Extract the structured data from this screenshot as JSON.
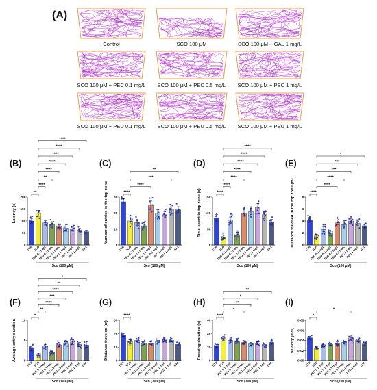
{
  "bar_colors": [
    "#2f45d8",
    "#f3ee3a",
    "#a9bce6",
    "#7ea34f",
    "#d98a6a",
    "#a6d0ea",
    "#c7a6db",
    "#b5b5b5",
    "#4d5a86"
  ],
  "dot_color": "#2a3fd4",
  "panel_a": {
    "label": "(A)",
    "track_color": "#b53ccb",
    "arena_color": "#f09a48",
    "tracks": [
      {
        "caption": "Control"
      },
      {
        "caption": "SCO 100 μM"
      },
      {
        "caption": "SCO 100 μM + GAL 1 mg/L"
      },
      {
        "caption": "SCO 100 μM + PEC 0.1 mg/L"
      },
      {
        "caption": "SCO 100 μM + PEC 0.5 mg/L"
      },
      {
        "caption": "SCO 100 μM + PEC 1 mg/L"
      },
      {
        "caption": "SCO 100 μM + PEU 0.1 mg/L"
      },
      {
        "caption": "SCO 100 μM + PEU 0.5 mg/L"
      },
      {
        "caption": "SCO 100 μM + PEU 1 mg/L"
      }
    ]
  },
  "chart_data": [
    {
      "panel": "(B)",
      "type": "bar",
      "ylabel": "Latency (s)",
      "categories": [
        "CTR",
        "SCO",
        "PEC 0.1 mg/L",
        "PEU 0.1 mg/L",
        "PEC 0.5 mg/L",
        "PEU 0.5 mg/L",
        "PEC 1 mg/L",
        "PEU 1 mg/L",
        "GAL"
      ],
      "values": [
        100,
        132,
        92,
        88,
        80,
        70,
        68,
        62,
        55
      ],
      "errors": [
        10,
        12,
        9,
        9,
        8,
        8,
        7,
        7,
        6
      ],
      "ylim": [
        0,
        200
      ],
      "yticks": [
        "0",
        "50",
        "100",
        "150",
        "200"
      ],
      "group_label": "Sco (100 μM)",
      "significance": [
        {
          "from": 0,
          "to": 1,
          "label": "**"
        },
        {
          "from": 1,
          "to": 2,
          "label": "****"
        },
        {
          "from": 1,
          "to": 3,
          "label": "**"
        },
        {
          "from": 1,
          "to": 4,
          "label": "****"
        },
        {
          "from": 1,
          "to": 5,
          "label": "****"
        },
        {
          "from": 1,
          "to": 6,
          "label": "****"
        },
        {
          "from": 1,
          "to": 7,
          "label": "****"
        },
        {
          "from": 1,
          "to": 8,
          "label": "****"
        }
      ]
    },
    {
      "panel": "(C)",
      "type": "bar",
      "ylabel": "Number of entries to the top zone",
      "categories": [
        "CTR",
        "SCO",
        "PEC 0.1 mg/L",
        "PEU 0.1 mg/L",
        "PEC 0.5 mg/L",
        "PEU 0.5 mg/L",
        "PEC 1 mg/L",
        "PEU 1 mg/L",
        "GAL"
      ],
      "values": [
        27,
        15,
        14,
        12,
        25,
        20,
        19,
        22,
        22
      ],
      "errors": [
        2,
        2,
        2,
        2,
        2.5,
        2,
        2,
        2,
        2
      ],
      "ylim": [
        0,
        30
      ],
      "yticks": [
        "0",
        "10",
        "20",
        "30"
      ],
      "group_label": "Sco (100 μM)",
      "significance": [
        {
          "from": 0,
          "to": 1,
          "label": "****"
        },
        {
          "from": 1,
          "to": 4,
          "label": "****"
        },
        {
          "from": 1,
          "to": 7,
          "label": "***"
        },
        {
          "from": 1,
          "to": 8,
          "label": "**"
        }
      ]
    },
    {
      "panel": "(D)",
      "type": "bar",
      "ylabel": "Time spent in top zone (s)",
      "categories": [
        "CTR",
        "SCO",
        "PEC 0.1 mg/L",
        "PEU 0.1 mg/L",
        "PEC 0.5 mg/L",
        "PEU 0.5 mg/L",
        "PEC 1 mg/L",
        "PEU 1 mg/L",
        "GAL"
      ],
      "values": [
        85,
        25,
        78,
        32,
        100,
        105,
        118,
        95,
        72
      ],
      "errors": [
        10,
        5,
        10,
        8,
        10,
        10,
        12,
        10,
        8
      ],
      "ylim": [
        0,
        150
      ],
      "yticks": [
        "0",
        "50",
        "100",
        "150"
      ],
      "group_label": "Sco (100 μM)",
      "significance": [
        {
          "from": 0,
          "to": 1,
          "label": "****"
        },
        {
          "from": 1,
          "to": 2,
          "label": "****"
        },
        {
          "from": 1,
          "to": 4,
          "label": "****"
        },
        {
          "from": 1,
          "to": 5,
          "label": "****"
        },
        {
          "from": 1,
          "to": 6,
          "label": "****"
        },
        {
          "from": 1,
          "to": 7,
          "label": "****"
        },
        {
          "from": 1,
          "to": 8,
          "label": "****"
        }
      ]
    },
    {
      "panel": "(E)",
      "type": "bar",
      "ylabel": "Distance traveled in the top zone (m)",
      "categories": [
        "CTR",
        "SCO",
        "PEC 0.1 mg/L",
        "PEU 0.1 mg/L",
        "PEC 0.5 mg/L",
        "PEU 0.5 mg/L",
        "PEC 1 mg/L",
        "PEU 1 mg/L",
        "GAL"
      ],
      "values": [
        4.2,
        1.5,
        2.6,
        2.0,
        3.8,
        3.4,
        4.0,
        3.6,
        3.2
      ],
      "errors": [
        0.4,
        0.3,
        0.4,
        0.3,
        0.4,
        0.4,
        0.4,
        0.4,
        0.3
      ],
      "ylim": [
        0,
        8
      ],
      "yticks": [
        "0",
        "2",
        "4",
        "6",
        "8"
      ],
      "group_label": "Sco (100 μM)",
      "significance": [
        {
          "from": 0,
          "to": 1,
          "label": "****"
        },
        {
          "from": 1,
          "to": 4,
          "label": "****"
        },
        {
          "from": 1,
          "to": 5,
          "label": "****"
        },
        {
          "from": 1,
          "to": 6,
          "label": "***"
        },
        {
          "from": 1,
          "to": 7,
          "label": "***"
        },
        {
          "from": 1,
          "to": 8,
          "label": "*"
        }
      ]
    },
    {
      "panel": "(F)",
      "type": "bar",
      "ylabel": "Average entry duration",
      "categories": [
        "CTR",
        "SCO",
        "PEC 0.1 mg/L",
        "PEU 0.1 mg/L",
        "PEC 0.5 mg/L",
        "PEU 0.5 mg/L",
        "PEC 1 mg/L",
        "PEU 1 mg/L",
        "GAL"
      ],
      "values": [
        3.0,
        1.4,
        3.6,
        2.0,
        3.9,
        4.1,
        4.6,
        4.0,
        3.8
      ],
      "errors": [
        0.6,
        0.3,
        0.4,
        0.4,
        0.5,
        0.5,
        0.6,
        0.5,
        0.5
      ],
      "ylim": [
        0,
        10
      ],
      "yticks": [
        "0",
        "5",
        "10"
      ],
      "group_label": "Sco (100 μM)",
      "significance": [
        {
          "from": 0,
          "to": 1,
          "label": "*"
        },
        {
          "from": 1,
          "to": 2,
          "label": "**"
        },
        {
          "from": 1,
          "to": 4,
          "label": "****"
        },
        {
          "from": 1,
          "to": 5,
          "label": "***"
        },
        {
          "from": 1,
          "to": 6,
          "label": "****"
        },
        {
          "from": 1,
          "to": 7,
          "label": "**"
        },
        {
          "from": 1,
          "to": 8,
          "label": "*"
        }
      ]
    },
    {
      "panel": "(G)",
      "type": "bar",
      "ylabel": "Distance traveled (m)",
      "categories": [
        "CTR",
        "SCO",
        "PEC 0.1 mg/L",
        "PEU 0.1 mg/L",
        "PEC 0.5 mg/L",
        "PEU 0.5 mg/L",
        "PEC 1 mg/L",
        "PEU 1 mg/L",
        "GAL"
      ],
      "values": [
        19,
        14,
        15,
        13,
        13,
        14,
        15,
        15,
        12
      ],
      "errors": [
        1,
        1.5,
        1,
        1,
        1,
        1,
        1,
        1,
        1
      ],
      "ylim": [
        0,
        30
      ],
      "yticks": [
        "0",
        "10",
        "20",
        "30"
      ],
      "group_label": "Sco (100 μM)",
      "significance": [
        {
          "from": 0,
          "to": 1,
          "label": "****"
        }
      ]
    },
    {
      "panel": "(H)",
      "type": "bar",
      "ylabel": "Freezing duration (s)",
      "categories": [
        "CTR",
        "SCO",
        "PEC 0.1 mg/L",
        "PEU 0.1 mg/L",
        "PEC 0.5 mg/L",
        "PEU 0.5 mg/L",
        "PEC 1 mg/L",
        "PEU 1 mg/L",
        "GAL"
      ],
      "values": [
        22,
        33,
        30,
        28,
        27,
        25,
        26,
        24,
        27
      ],
      "errors": [
        2,
        3,
        2.5,
        2.5,
        2,
        2,
        2,
        2,
        2.5
      ],
      "ylim": [
        0,
        60
      ],
      "yticks": [
        "0",
        "20",
        "40",
        "60"
      ],
      "group_label": "Sco (100 μM)",
      "significance": [
        {
          "from": 0,
          "to": 1,
          "label": "****"
        },
        {
          "from": 1,
          "to": 4,
          "label": "*"
        },
        {
          "from": 1,
          "to": 5,
          "label": "**"
        },
        {
          "from": 1,
          "to": 6,
          "label": "*"
        },
        {
          "from": 1,
          "to": 8,
          "label": "**"
        }
      ]
    },
    {
      "panel": "(I)",
      "type": "bar",
      "ylabel": "Velocity (m/s)",
      "categories": [
        "CTR",
        "SCO",
        "PEC 0.1 mg/L",
        "PEU 0.1 mg/L",
        "PEC 0.5 mg/L",
        "PEU 0.5 mg/L",
        "PEC 1 mg/L",
        "PEU 1 mg/L",
        "GAL"
      ],
      "values": [
        0.045,
        0.025,
        0.03,
        0.032,
        0.034,
        0.036,
        0.045,
        0.04,
        0.033
      ],
      "errors": [
        0.003,
        0.002,
        0.002,
        0.002,
        0.003,
        0.003,
        0.004,
        0.003,
        0.003
      ],
      "ylim": [
        0,
        0.08
      ],
      "yticks": [
        "0.00",
        "0.02",
        "0.04",
        "0.06",
        "0.08"
      ],
      "group_label": "Sco (100 μM)",
      "significance": [
        {
          "from": 0,
          "to": 1,
          "label": "*"
        },
        {
          "from": 1,
          "to": 6,
          "label": "*"
        }
      ]
    }
  ]
}
